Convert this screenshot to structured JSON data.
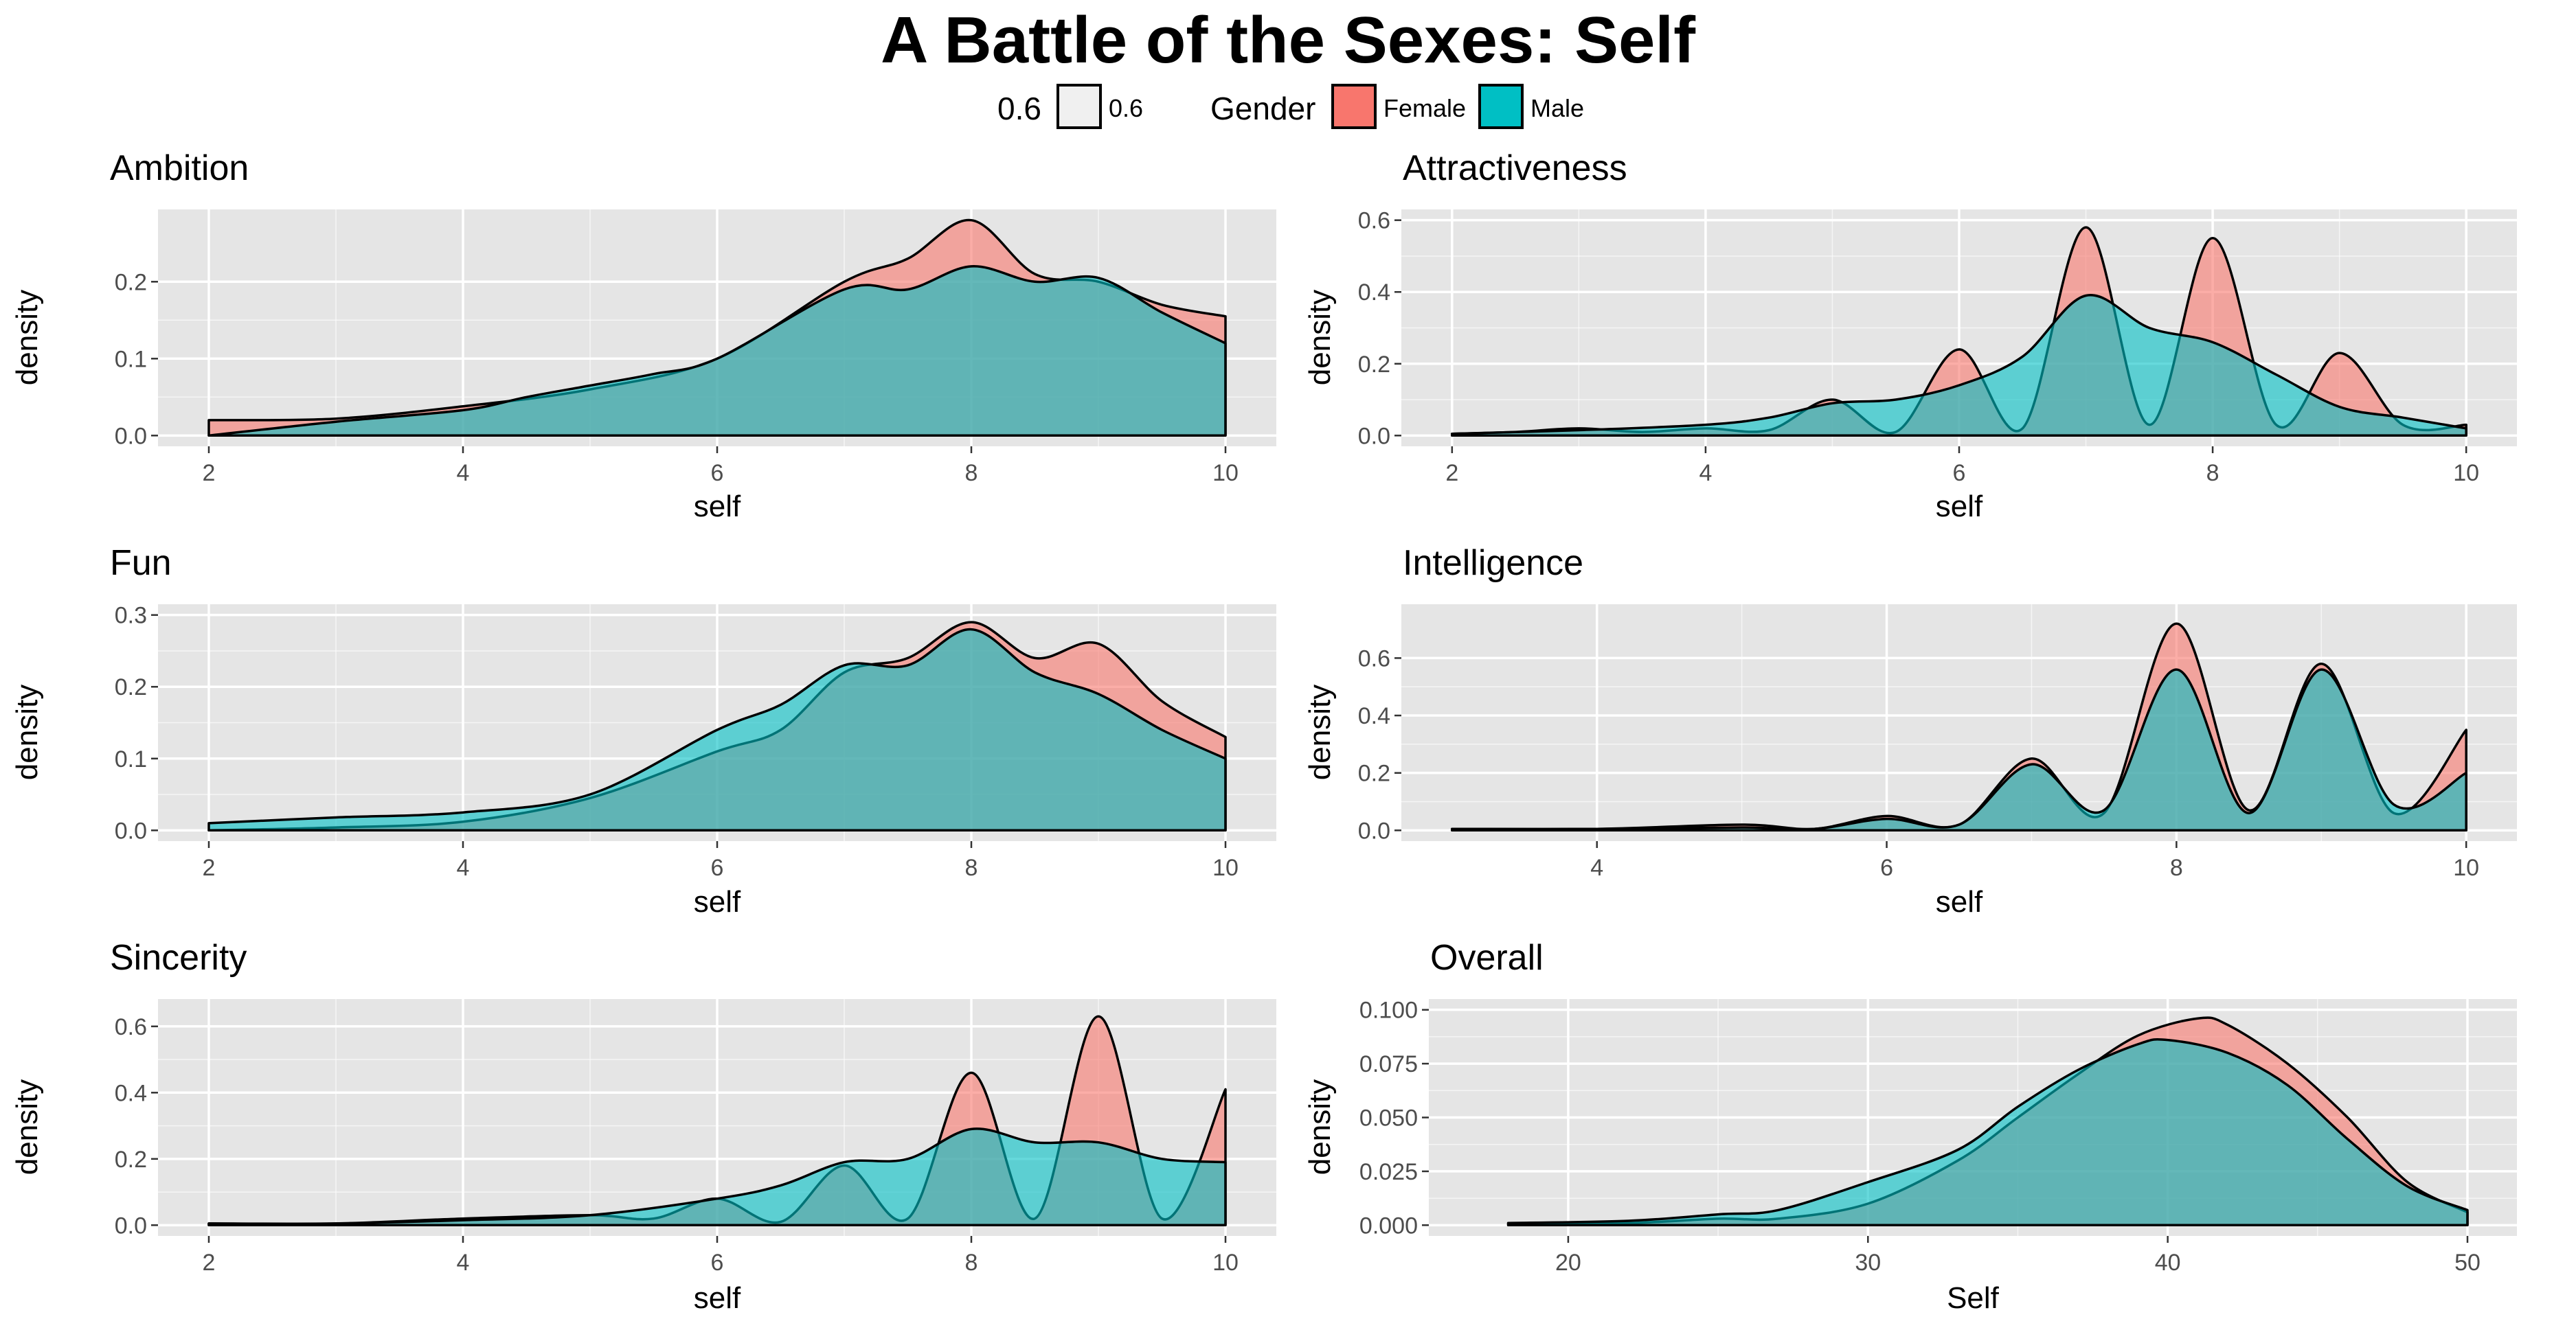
{
  "title": "A Battle of the Sexes: Self",
  "legend": {
    "alpha_title": "0.6",
    "alpha_label": "0.6",
    "gender_title": "Gender",
    "female_label": "Female",
    "male_label": "Male"
  },
  "colors": {
    "female": "#F8766D",
    "male": "#00BFC4",
    "panel_bg": "#E5E5E5",
    "grid": "#FFFFFF"
  },
  "chart_data": [
    {
      "type": "area",
      "title": "Ambition",
      "xlabel": "self",
      "ylabel": "density",
      "xlim": [
        2,
        10
      ],
      "ylim": [
        0,
        0.28
      ],
      "xticks": [
        2,
        4,
        6,
        8,
        10
      ],
      "yticks": [
        0.0,
        0.1,
        0.2
      ],
      "ytick_labels": [
        "0.0",
        "0.1",
        "0.2"
      ],
      "grid": true,
      "series": [
        {
          "name": "Female",
          "x": [
            2,
            3,
            4,
            5,
            6,
            7,
            7.5,
            8,
            8.5,
            9,
            9.5,
            10
          ],
          "y": [
            0.02,
            0.022,
            0.038,
            0.06,
            0.1,
            0.2,
            0.23,
            0.28,
            0.21,
            0.2,
            0.17,
            0.155
          ]
        },
        {
          "name": "Male",
          "x": [
            2,
            3,
            4,
            4.5,
            5,
            5.5,
            6,
            7,
            7.5,
            8,
            8.5,
            9,
            9.5,
            10
          ],
          "y": [
            0.0,
            0.018,
            0.033,
            0.05,
            0.065,
            0.08,
            0.1,
            0.19,
            0.19,
            0.22,
            0.2,
            0.205,
            0.16,
            0.12
          ]
        }
      ]
    },
    {
      "type": "area",
      "title": "Attractiveness",
      "xlabel": "self",
      "ylabel": "density",
      "xlim": [
        2,
        10
      ],
      "ylim": [
        0,
        0.6
      ],
      "xticks": [
        2,
        4,
        6,
        8,
        10
      ],
      "yticks": [
        0.0,
        0.2,
        0.4,
        0.6
      ],
      "ytick_labels": [
        "0.0",
        "0.2",
        "0.4",
        "0.6"
      ],
      "grid": true,
      "series": [
        {
          "name": "Female",
          "x": [
            2,
            2.5,
            3,
            3.5,
            4,
            4.5,
            5,
            5.5,
            6,
            6.5,
            7,
            7.5,
            8,
            8.5,
            9,
            9.5,
            10
          ],
          "y": [
            0.005,
            0.01,
            0.02,
            0.01,
            0.02,
            0.015,
            0.1,
            0.01,
            0.24,
            0.02,
            0.58,
            0.03,
            0.55,
            0.03,
            0.23,
            0.03,
            0.03
          ]
        },
        {
          "name": "Male",
          "x": [
            2,
            3,
            4,
            4.5,
            5,
            5.5,
            6,
            6.5,
            7,
            7.5,
            8,
            8.5,
            9,
            9.5,
            10
          ],
          "y": [
            0.005,
            0.015,
            0.03,
            0.05,
            0.09,
            0.1,
            0.14,
            0.22,
            0.39,
            0.3,
            0.26,
            0.17,
            0.08,
            0.05,
            0.02
          ]
        }
      ]
    },
    {
      "type": "area",
      "title": "Fun",
      "xlabel": "self",
      "ylabel": "density",
      "xlim": [
        2,
        10
      ],
      "ylim": [
        0,
        0.3
      ],
      "xticks": [
        2,
        4,
        6,
        8,
        10
      ],
      "yticks": [
        0.0,
        0.1,
        0.2,
        0.3
      ],
      "ytick_labels": [
        "0.0",
        "0.1",
        "0.2",
        "0.3"
      ],
      "grid": true,
      "series": [
        {
          "name": "Female",
          "x": [
            2,
            3,
            4,
            5,
            6,
            6.5,
            7,
            7.5,
            8,
            8.5,
            9,
            9.5,
            10
          ],
          "y": [
            0.0,
            0.004,
            0.012,
            0.045,
            0.11,
            0.14,
            0.22,
            0.24,
            0.29,
            0.24,
            0.26,
            0.18,
            0.13
          ]
        },
        {
          "name": "Male",
          "x": [
            2,
            3,
            4,
            5,
            6,
            6.5,
            7,
            7.5,
            8,
            8.5,
            9,
            9.5,
            10
          ],
          "y": [
            0.01,
            0.018,
            0.025,
            0.05,
            0.14,
            0.175,
            0.23,
            0.23,
            0.28,
            0.22,
            0.19,
            0.14,
            0.1
          ]
        }
      ]
    },
    {
      "type": "area",
      "title": "Intelligence",
      "xlabel": "self",
      "ylabel": "density",
      "xlim": [
        3,
        10
      ],
      "ylim": [
        0,
        0.75
      ],
      "xticks": [
        4,
        6,
        8,
        10
      ],
      "yticks": [
        0.0,
        0.2,
        0.4,
        0.6
      ],
      "ytick_labels": [
        "0.0",
        "0.2",
        "0.4",
        "0.6"
      ],
      "grid": true,
      "series": [
        {
          "name": "Female",
          "x": [
            3,
            4,
            5,
            5.5,
            6,
            6.5,
            7,
            7.5,
            8,
            8.5,
            9,
            9.5,
            10
          ],
          "y": [
            0.005,
            0.005,
            0.02,
            0.005,
            0.05,
            0.02,
            0.25,
            0.06,
            0.72,
            0.07,
            0.58,
            0.06,
            0.35
          ]
        },
        {
          "name": "Male",
          "x": [
            3,
            4,
            5,
            5.5,
            6,
            6.5,
            7,
            7.5,
            8,
            8.5,
            9,
            9.5,
            10
          ],
          "y": [
            0.005,
            0.005,
            0.01,
            0.005,
            0.04,
            0.02,
            0.23,
            0.07,
            0.56,
            0.06,
            0.56,
            0.09,
            0.2
          ]
        }
      ]
    },
    {
      "type": "area",
      "title": "Sincerity",
      "xlabel": "self",
      "ylabel": "density",
      "xlim": [
        2,
        10
      ],
      "ylim": [
        0,
        0.65
      ],
      "xticks": [
        2,
        4,
        6,
        8,
        10
      ],
      "yticks": [
        0.0,
        0.2,
        0.4,
        0.6
      ],
      "ytick_labels": [
        "0.0",
        "0.2",
        "0.4",
        "0.6"
      ],
      "grid": true,
      "series": [
        {
          "name": "Female",
          "x": [
            2,
            3,
            4,
            5,
            5.5,
            6,
            6.5,
            7,
            7.5,
            8,
            8.5,
            9,
            9.5,
            10
          ],
          "y": [
            0.005,
            0.005,
            0.02,
            0.03,
            0.02,
            0.08,
            0.01,
            0.18,
            0.02,
            0.46,
            0.02,
            0.63,
            0.02,
            0.41
          ]
        },
        {
          "name": "Male",
          "x": [
            2,
            3,
            4,
            5,
            6,
            6.5,
            7,
            7.5,
            8,
            8.5,
            9,
            9.5,
            10
          ],
          "y": [
            0.005,
            0.005,
            0.015,
            0.03,
            0.08,
            0.12,
            0.19,
            0.2,
            0.29,
            0.25,
            0.25,
            0.2,
            0.19
          ]
        }
      ]
    },
    {
      "type": "area",
      "title": "Overall",
      "xlabel": "Self",
      "ylabel": "density",
      "xlim": [
        17,
        50
      ],
      "ylim": [
        0,
        0.1
      ],
      "xticks": [
        20,
        30,
        40,
        50
      ],
      "yticks": [
        0.0,
        0.025,
        0.05,
        0.075,
        0.1
      ],
      "ytick_labels": [
        "0.000",
        "0.025",
        "0.050",
        "0.075",
        "0.100"
      ],
      "grid": true,
      "series": [
        {
          "name": "Female",
          "x": [
            18,
            22,
            25,
            27,
            30,
            33,
            35,
            37,
            39,
            41,
            42,
            44,
            46,
            48,
            50
          ],
          "y": [
            0.001,
            0.001,
            0.003,
            0.003,
            0.01,
            0.03,
            0.05,
            0.07,
            0.088,
            0.096,
            0.093,
            0.075,
            0.05,
            0.02,
            0.006
          ]
        },
        {
          "name": "Male",
          "x": [
            18,
            22,
            25,
            27,
            30,
            33,
            35,
            37,
            39,
            40,
            42,
            44,
            46,
            48,
            50
          ],
          "y": [
            0.001,
            0.002,
            0.005,
            0.007,
            0.02,
            0.035,
            0.055,
            0.072,
            0.084,
            0.086,
            0.08,
            0.065,
            0.04,
            0.018,
            0.007
          ]
        }
      ]
    }
  ]
}
